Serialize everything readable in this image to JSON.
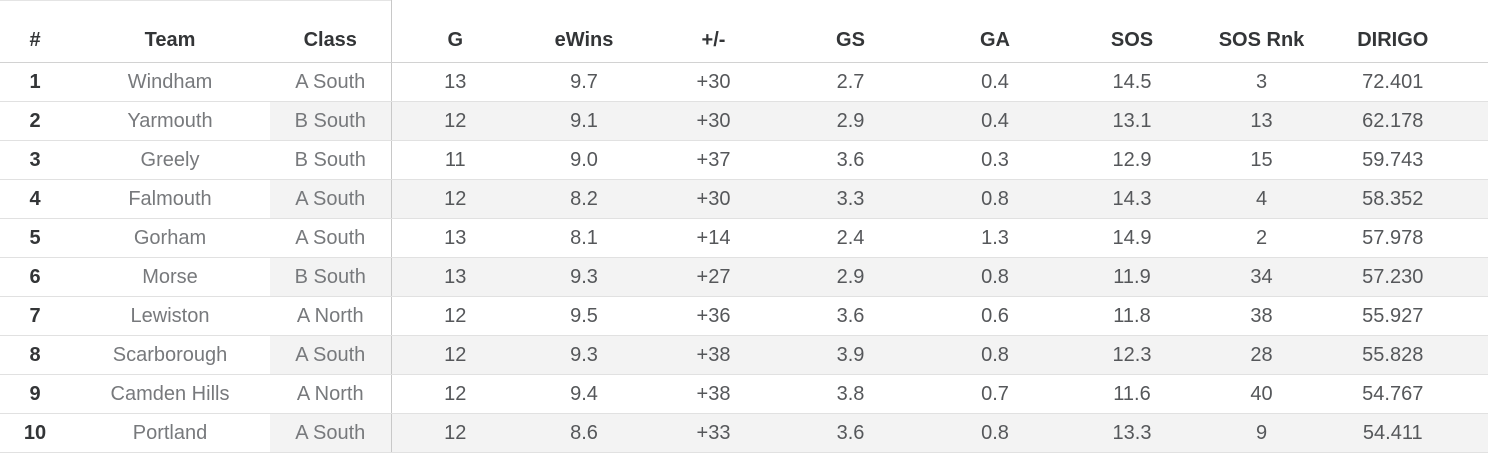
{
  "chart_data": {
    "type": "table",
    "columns": [
      {
        "key": "rank",
        "label": "#"
      },
      {
        "key": "team",
        "label": "Team"
      },
      {
        "key": "class",
        "label": "Class"
      },
      {
        "key": "games",
        "label": "G"
      },
      {
        "key": "ewins",
        "label": "eWins"
      },
      {
        "key": "pm",
        "label": "+/-"
      },
      {
        "key": "gs",
        "label": "GS"
      },
      {
        "key": "ga",
        "label": "GA"
      },
      {
        "key": "sos",
        "label": "SOS"
      },
      {
        "key": "sosrnk",
        "label": "SOS Rnk"
      },
      {
        "key": "dirigo",
        "label": "DIRIGO"
      }
    ],
    "rows": [
      [
        "1",
        "Windham",
        "A South",
        "13",
        "9.7",
        "+30",
        "2.7",
        "0.4",
        "14.5",
        "3",
        "72.401"
      ],
      [
        "2",
        "Yarmouth",
        "B South",
        "12",
        "9.1",
        "+30",
        "2.9",
        "0.4",
        "13.1",
        "13",
        "62.178"
      ],
      [
        "3",
        "Greely",
        "B South",
        "11",
        "9.0",
        "+37",
        "3.6",
        "0.3",
        "12.9",
        "15",
        "59.743"
      ],
      [
        "4",
        "Falmouth",
        "A South",
        "12",
        "8.2",
        "+30",
        "3.3",
        "0.8",
        "14.3",
        "4",
        "58.352"
      ],
      [
        "5",
        "Gorham",
        "A South",
        "13",
        "8.1",
        "+14",
        "2.4",
        "1.3",
        "14.9",
        "2",
        "57.978"
      ],
      [
        "6",
        "Morse",
        "B South",
        "13",
        "9.3",
        "+27",
        "2.9",
        "0.8",
        "11.9",
        "34",
        "57.230"
      ],
      [
        "7",
        "Lewiston",
        "A North",
        "12",
        "9.5",
        "+36",
        "3.6",
        "0.6",
        "11.8",
        "38",
        "55.927"
      ],
      [
        "8",
        "Scarborough",
        "A South",
        "12",
        "9.3",
        "+38",
        "3.9",
        "0.8",
        "12.3",
        "28",
        "55.828"
      ],
      [
        "9",
        "Camden Hills",
        "A North",
        "12",
        "9.4",
        "+38",
        "3.8",
        "0.7",
        "11.6",
        "40",
        "54.767"
      ],
      [
        "10",
        "Portland",
        "A South",
        "12",
        "8.6",
        "+33",
        "3.6",
        "0.8",
        "13.3",
        "9",
        "54.411"
      ]
    ],
    "layout": {
      "banding": "even rows shaded from Class column through DIRIGO column",
      "divider_after_column": "Class",
      "grid": "horizontal row separators full width; vertical divider after Class; right edge border"
    },
    "colors": {
      "header_text": "#333537",
      "rank_text": "#333537",
      "team_class_text": "#77797c",
      "value_text": "#55575a",
      "band_bg": "#f3f3f3",
      "row_line": "#e1e1e1",
      "header_line": "#d2d2d2",
      "divider_line": "#c8c8c8",
      "background": "#ffffff"
    }
  }
}
